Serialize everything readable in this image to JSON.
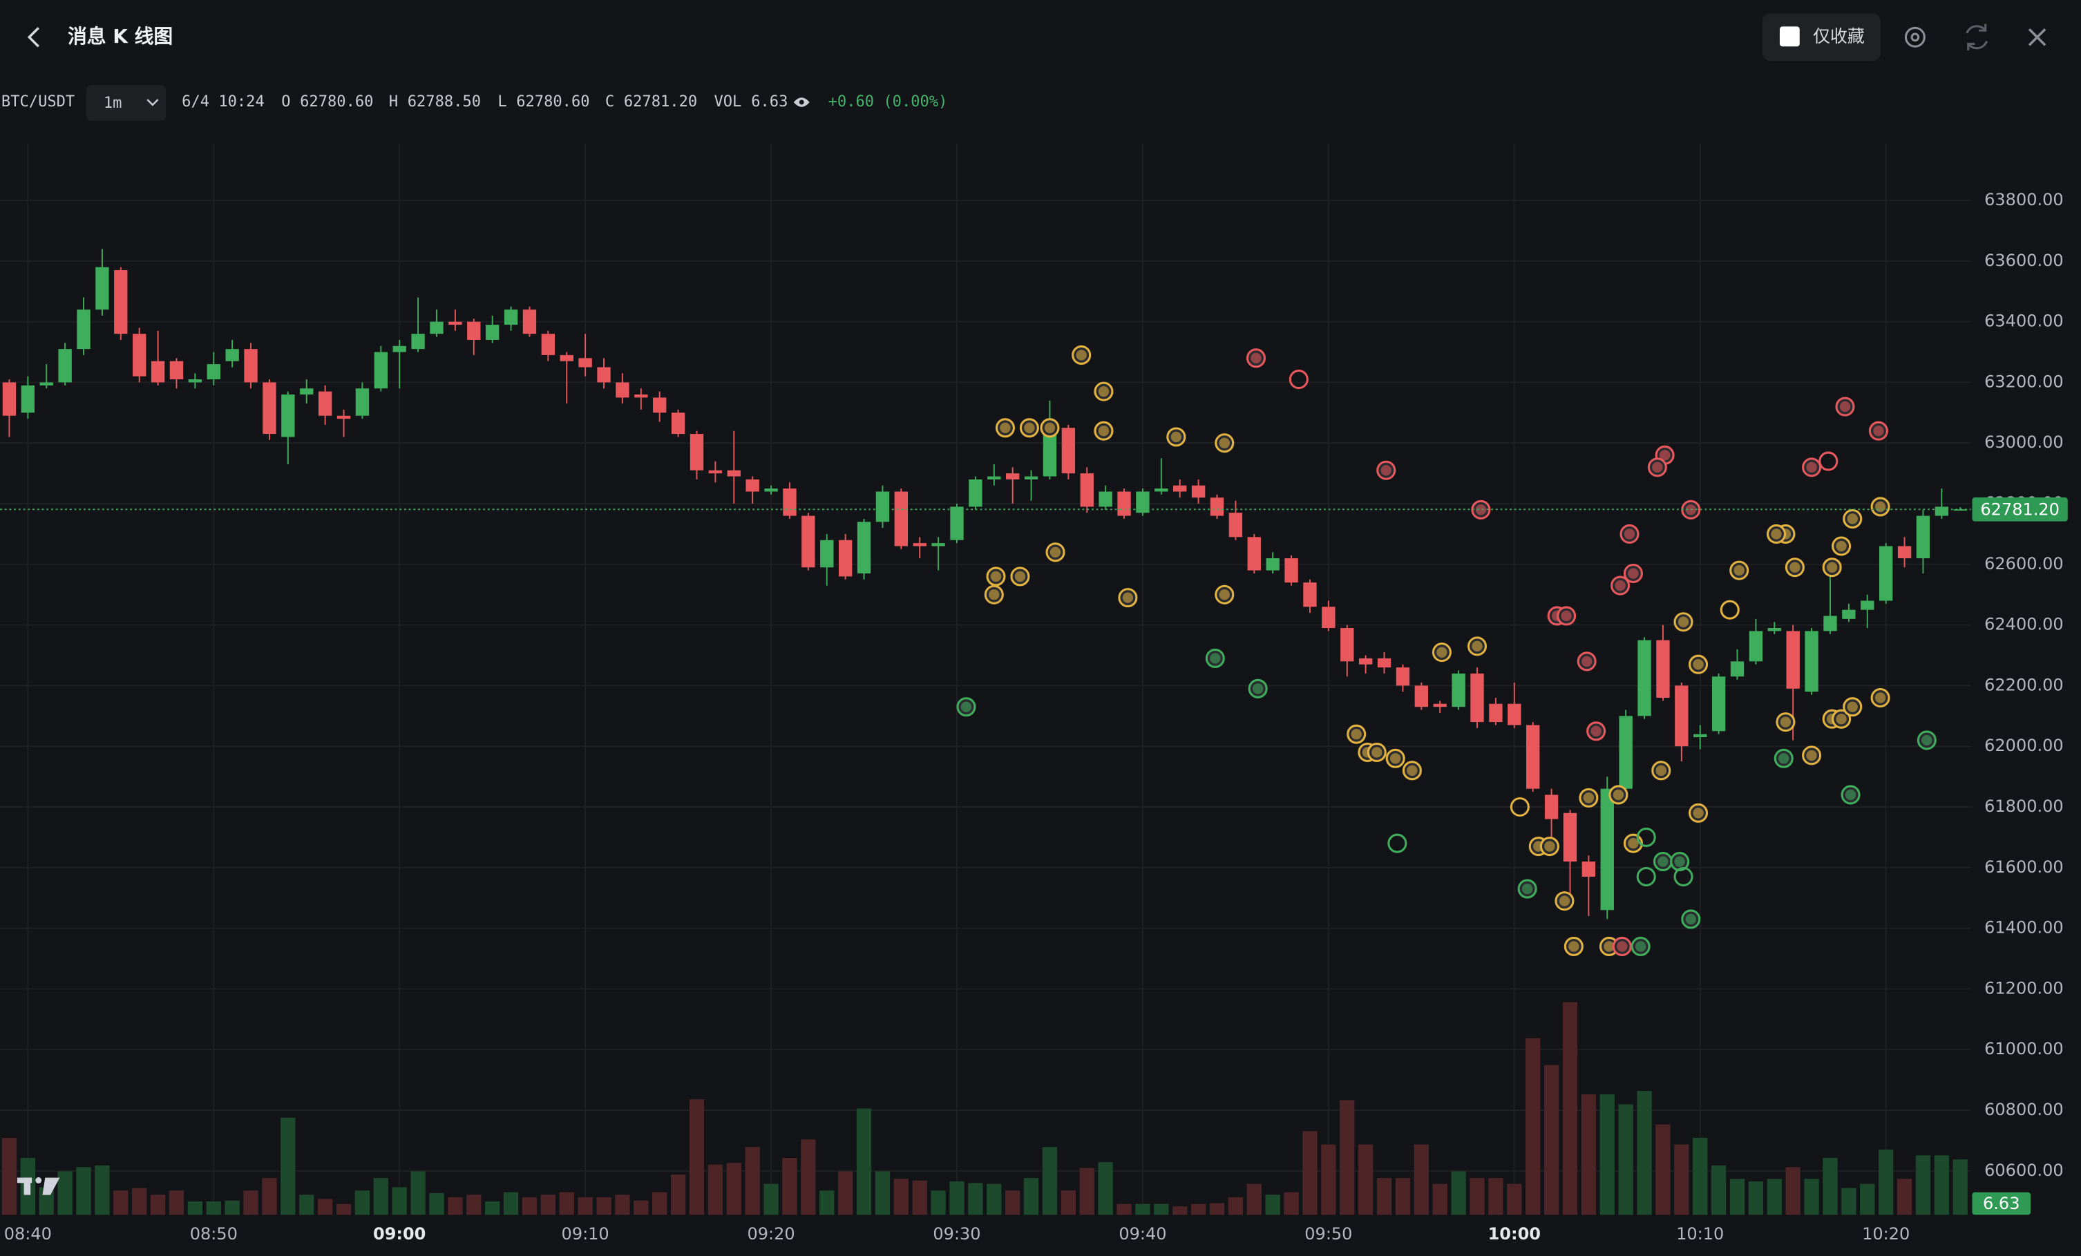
{
  "header": {
    "title": "消息 K 线图",
    "favorites_only": "仅收藏"
  },
  "chart_data": {
    "type": "candlestick",
    "symbol": "BTC/USDT",
    "interval": "1m",
    "legend": {
      "time": "6/4 10:24",
      "o_label": "O",
      "open": "62780.60",
      "h_label": "H",
      "high": "62788.50",
      "l_label": "L",
      "low": "62780.60",
      "c_label": "C",
      "close": "62781.20",
      "vol_label": "VOL",
      "volume": "6.63",
      "change": "+0.60 (0.00%)"
    },
    "last_price_label": "62781.20",
    "last_volume_label": "6.63",
    "up_color": "#3fae5c",
    "down_color": "#e8585d",
    "up_volume_color": "#1d4a2c",
    "down_volume_color": "#4e2527",
    "grid": true,
    "xlim": [
      -0.5,
      105.57
    ],
    "ylim": [
      60455,
      63988
    ],
    "y2lim": [
      0,
      128
    ],
    "xticks": [
      {
        "value": 1,
        "label": "08:40"
      },
      {
        "value": 11,
        "label": "08:50"
      },
      {
        "value": 21,
        "label": "09:00",
        "bold": true
      },
      {
        "value": 31,
        "label": "09:10"
      },
      {
        "value": 41,
        "label": "09:20"
      },
      {
        "value": 51,
        "label": "09:30"
      },
      {
        "value": 61,
        "label": "09:40"
      },
      {
        "value": 71,
        "label": "09:50"
      },
      {
        "value": 81,
        "label": "10:00",
        "bold": true
      },
      {
        "value": 91,
        "label": "10:10"
      },
      {
        "value": 101,
        "label": "10:20"
      }
    ],
    "yticks": [
      {
        "value": 60600,
        "label": "60600.00"
      },
      {
        "value": 60800,
        "label": "60800.00"
      },
      {
        "value": 61000,
        "label": "61000.00"
      },
      {
        "value": 61200,
        "label": "61200.00"
      },
      {
        "value": 61400,
        "label": "61400.00"
      },
      {
        "value": 61600,
        "label": "61600.00"
      },
      {
        "value": 61800,
        "label": "61800.00"
      },
      {
        "value": 62000,
        "label": "62000.00"
      },
      {
        "value": 62200,
        "label": "62200.00"
      },
      {
        "value": 62400,
        "label": "62400.00"
      },
      {
        "value": 62600,
        "label": "62600.00"
      },
      {
        "value": 62800,
        "label": "62800.00"
      },
      {
        "value": 63000,
        "label": "63000.00"
      },
      {
        "value": 63200,
        "label": "63200.00"
      },
      {
        "value": 63400,
        "label": "63400.00"
      },
      {
        "value": 63600,
        "label": "63600.00"
      },
      {
        "value": 63800,
        "label": "63800.00"
      }
    ],
    "x": [
      0,
      1,
      2,
      3,
      4,
      5,
      6,
      7,
      8,
      9,
      10,
      11,
      12,
      13,
      14,
      15,
      16,
      17,
      18,
      19,
      20,
      21,
      22,
      23,
      24,
      25,
      26,
      27,
      28,
      29,
      30,
      31,
      32,
      33,
      34,
      35,
      36,
      37,
      38,
      39,
      40,
      41,
      42,
      43,
      44,
      45,
      46,
      47,
      48,
      49,
      50,
      51,
      52,
      53,
      54,
      55,
      56,
      57,
      58,
      59,
      60,
      61,
      62,
      63,
      64,
      65,
      66,
      67,
      68,
      69,
      70,
      71,
      72,
      73,
      74,
      75,
      76,
      77,
      78,
      79,
      80,
      81,
      82,
      83,
      84,
      85,
      86,
      87,
      88,
      89,
      90,
      91,
      92,
      93,
      94,
      95,
      96,
      97,
      98,
      99,
      100,
      101,
      102,
      103,
      104,
      105
    ],
    "open": [
      63200,
      63100,
      63190,
      63200,
      63310,
      63440,
      63570,
      63360,
      63270,
      63270,
      63200,
      63210,
      63270,
      63310,
      63200,
      63020,
      63160,
      63170,
      63090,
      63090,
      63180,
      63300,
      63310,
      63360,
      63400,
      63400,
      63340,
      63390,
      63440,
      63360,
      63290,
      63280,
      63250,
      63200,
      63160,
      63150,
      63100,
      63030,
      62910,
      62910,
      62880,
      62840,
      62850,
      62760,
      62590,
      62680,
      62570,
      62740,
      62840,
      62670,
      62660,
      62680,
      62790,
      62880,
      62900,
      62880,
      62890,
      63050,
      62900,
      62790,
      62840,
      62770,
      62840,
      62860,
      62860,
      62820,
      62770,
      62690,
      62580,
      62620,
      62540,
      62460,
      62390,
      62290,
      62290,
      62260,
      62200,
      62140,
      62130,
      62240,
      62140,
      62140,
      62070,
      61840,
      61780,
      61620,
      61460,
      61860,
      62100,
      62350,
      62200,
      62030,
      62050,
      62230,
      62280,
      62380,
      62380,
      62180,
      62380,
      62420,
      62450,
      62480,
      62660,
      62620,
      62760,
      62780.6
    ],
    "high": [
      63210,
      63220,
      63260,
      63330,
      63480,
      63640,
      63580,
      63380,
      63370,
      63280,
      63230,
      63300,
      63340,
      63330,
      63210,
      63170,
      63210,
      63190,
      63110,
      63200,
      63320,
      63340,
      63480,
      63440,
      63440,
      63410,
      63420,
      63450,
      63450,
      63370,
      63300,
      63360,
      63280,
      63230,
      63180,
      63170,
      63110,
      63040,
      62940,
      63040,
      62890,
      62860,
      62870,
      62770,
      62700,
      62700,
      62750,
      62860,
      62850,
      62690,
      62690,
      62800,
      62890,
      62930,
      62920,
      62910,
      63140,
      63060,
      62920,
      62860,
      62850,
      62850,
      62950,
      62880,
      62880,
      62830,
      62810,
      62700,
      62640,
      62630,
      62550,
      62480,
      62400,
      62300,
      62310,
      62270,
      62210,
      62150,
      62250,
      62260,
      62160,
      62210,
      62080,
      61860,
      61790,
      61640,
      61900,
      62120,
      62360,
      62400,
      62210,
      62070,
      62240,
      62320,
      62420,
      62410,
      62400,
      62390,
      62570,
      62470,
      62500,
      62670,
      62690,
      62780,
      62850,
      62788.5
    ],
    "low": [
      63020,
      63080,
      63180,
      63190,
      63290,
      63420,
      63340,
      63200,
      63190,
      63180,
      63180,
      63190,
      63250,
      63180,
      63010,
      62930,
      63130,
      63060,
      63020,
      63080,
      63170,
      63180,
      63300,
      63350,
      63370,
      63290,
      63330,
      63370,
      63350,
      63270,
      63130,
      63220,
      63180,
      63130,
      63110,
      63070,
      63020,
      62880,
      62870,
      62800,
      62800,
      62830,
      62750,
      62580,
      62530,
      62550,
      62550,
      62720,
      62650,
      62620,
      62580,
      62670,
      62780,
      62860,
      62800,
      62810,
      62880,
      62880,
      62770,
      62780,
      62750,
      62760,
      62830,
      62820,
      62800,
      62750,
      62680,
      62570,
      62570,
      62530,
      62440,
      62380,
      62230,
      62240,
      62240,
      62180,
      62120,
      62110,
      62120,
      62060,
      62070,
      62060,
      61850,
      61640,
      61480,
      61440,
      61430,
      61850,
      62090,
      62150,
      61950,
      61990,
      62040,
      62220,
      62270,
      62370,
      62020,
      62170,
      62370,
      62410,
      62390,
      62470,
      62590,
      62570,
      62750,
      62780.6
    ],
    "close": [
      63090,
      63190,
      63200,
      63310,
      63440,
      63580,
      63360,
      63220,
      63200,
      63210,
      63210,
      63260,
      63310,
      63200,
      63030,
      63160,
      63180,
      63090,
      63080,
      63180,
      63300,
      63320,
      63360,
      63400,
      63390,
      63340,
      63390,
      63440,
      63360,
      63290,
      63270,
      63250,
      63200,
      63150,
      63150,
      63100,
      63030,
      62910,
      62900,
      62890,
      62840,
      62850,
      62760,
      62590,
      62680,
      62560,
      62740,
      62840,
      62660,
      62660,
      62670,
      62790,
      62880,
      62890,
      62880,
      62890,
      63070,
      62900,
      62790,
      62840,
      62760,
      62840,
      62850,
      62840,
      62820,
      62760,
      62690,
      62580,
      62620,
      62540,
      62460,
      62390,
      62280,
      62270,
      62260,
      62200,
      62130,
      62130,
      62240,
      62080,
      62080,
      62070,
      61860,
      61760,
      61620,
      61570,
      61860,
      62100,
      62350,
      62160,
      62000,
      62040,
      62230,
      62280,
      62380,
      62390,
      62190,
      62380,
      62430,
      62450,
      62480,
      62660,
      62620,
      62760,
      62790,
      62781.2
    ],
    "volume": [
      9.2,
      6.8,
      3.3,
      5.2,
      5.7,
      5.9,
      2.9,
      3.2,
      2.4,
      2.9,
      1.6,
      1.6,
      1.7,
      2.9,
      4.4,
      11.6,
      2.4,
      1.9,
      1.3,
      2.9,
      4.4,
      3.3,
      5.2,
      2.6,
      2.1,
      2.4,
      1.6,
      2.7,
      2.1,
      2.4,
      2.7,
      2.1,
      2.1,
      2.4,
      1.7,
      2.7,
      4.8,
      13.8,
      6.0,
      6.2,
      8.1,
      3.7,
      6.8,
      9.0,
      2.9,
      5.2,
      12.7,
      5.2,
      4.3,
      4.1,
      2.9,
      4.0,
      3.8,
      3.7,
      2.9,
      4.4,
      8.1,
      2.9,
      5.6,
      6.3,
      1.3,
      1.3,
      1.3,
      1.0,
      1.3,
      1.4,
      2.1,
      3.7,
      2.4,
      2.7,
      10.0,
      8.4,
      13.7,
      8.4,
      4.4,
      4.4,
      8.4,
      3.7,
      5.2,
      4.4,
      4.4,
      3.7,
      21.1,
      17.9,
      25.4,
      14.4,
      14.4,
      13.2,
      14.8,
      10.8,
      8.4,
      9.2,
      5.9,
      4.3,
      4.0,
      4.3,
      5.7,
      4.3,
      6.8,
      3.2,
      3.7,
      7.8,
      4.3,
      7.1,
      7.1,
      6.63
    ],
    "markers": [
      {
        "color": "#e3b341",
        "hollow": false,
        "x": [
          57.7,
          58.9,
          58.9,
          53.6,
          54.9,
          56,
          62.8,
          65.4,
          56.3,
          53.1,
          53,
          54.4,
          60.2,
          65.4,
          77.1,
          79,
          72.5,
          73.1,
          73.6,
          74.6,
          75.5,
          85,
          86.6,
          82.3,
          82.9,
          83.7,
          84.2,
          86.1,
          87.4,
          88.9,
          90.1,
          93.1,
          95.6,
          95.1,
          96.1,
          98.1,
          98.6,
          99.2,
          100.7,
          95.6,
          97,
          98.1,
          98.6,
          99.2,
          100.7,
          90.9,
          90.9
        ],
        "y": [
          63290,
          63170,
          63040,
          63050,
          63050,
          63050,
          63020,
          63000,
          62640,
          62560,
          62500,
          62560,
          62490,
          62500,
          62310,
          62330,
          62040,
          61980,
          61980,
          61960,
          61920,
          61830,
          61840,
          61670,
          61670,
          61490,
          61340,
          61340,
          61680,
          61920,
          62410,
          62580,
          62700,
          62700,
          62590,
          62590,
          62660,
          62750,
          62790,
          62080,
          61970,
          62090,
          62090,
          62130,
          62160,
          62270,
          61780
        ]
      },
      {
        "color": "#e3b341",
        "hollow": true,
        "x": [
          92.6,
          81.3
        ],
        "y": [
          62450,
          61800
        ]
      },
      {
        "color": "#e8585d",
        "hollow": false,
        "x": [
          67.1,
          74.1,
          79.2,
          89.1,
          88.7,
          90.5,
          87.2,
          84.9,
          83.3,
          83.8,
          86.7,
          87.4,
          85.4,
          98.8,
          100.6,
          97,
          86.8
        ],
        "y": [
          63280,
          62910,
          62780,
          62960,
          62920,
          62780,
          62700,
          62280,
          62430,
          62430,
          62530,
          62570,
          62050,
          63120,
          63040,
          62920,
          61340
        ]
      },
      {
        "color": "#e8585d",
        "hollow": true,
        "x": [
          69.4,
          97.9
        ],
        "y": [
          63210,
          62940
        ]
      },
      {
        "color": "#3fae5c",
        "hollow": false,
        "x": [
          51.5,
          64.9,
          67.2,
          81.7,
          87.8,
          89,
          89.9,
          90.5,
          95.5,
          99.1,
          103.2
        ],
        "y": [
          62130,
          62290,
          62190,
          61530,
          61340,
          61620,
          61620,
          61430,
          61960,
          61840,
          62020
        ]
      },
      {
        "color": "#3fae5c",
        "hollow": true,
        "x": [
          74.7,
          88.1,
          88.1,
          90.1
        ],
        "y": [
          61680,
          61700,
          61570,
          61570
        ]
      }
    ]
  }
}
